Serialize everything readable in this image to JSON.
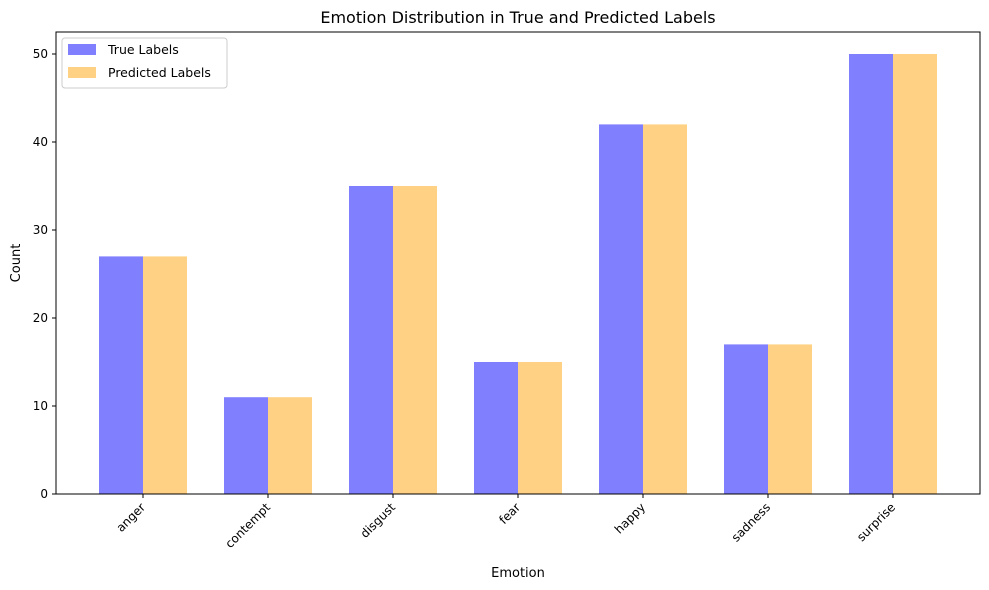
{
  "chart_data": {
    "type": "bar",
    "title": "Emotion Distribution in True and Predicted Labels",
    "xlabel": "Emotion",
    "ylabel": "Count",
    "categories": [
      "anger",
      "contempt",
      "disgust",
      "fear",
      "happy",
      "sadness",
      "surprise"
    ],
    "series": [
      {
        "name": "True Labels",
        "color": "#4a4aff",
        "values": [
          27,
          11,
          35,
          15,
          42,
          17,
          50
        ]
      },
      {
        "name": "Predicted Labels",
        "color": "#ffbe50",
        "values": [
          27,
          11,
          35,
          15,
          42,
          17,
          50
        ]
      }
    ],
    "ylim": [
      0,
      52.5
    ],
    "yticks": [
      0,
      10,
      20,
      30,
      40,
      50
    ],
    "legend_position": "top-left",
    "grid": false
  }
}
